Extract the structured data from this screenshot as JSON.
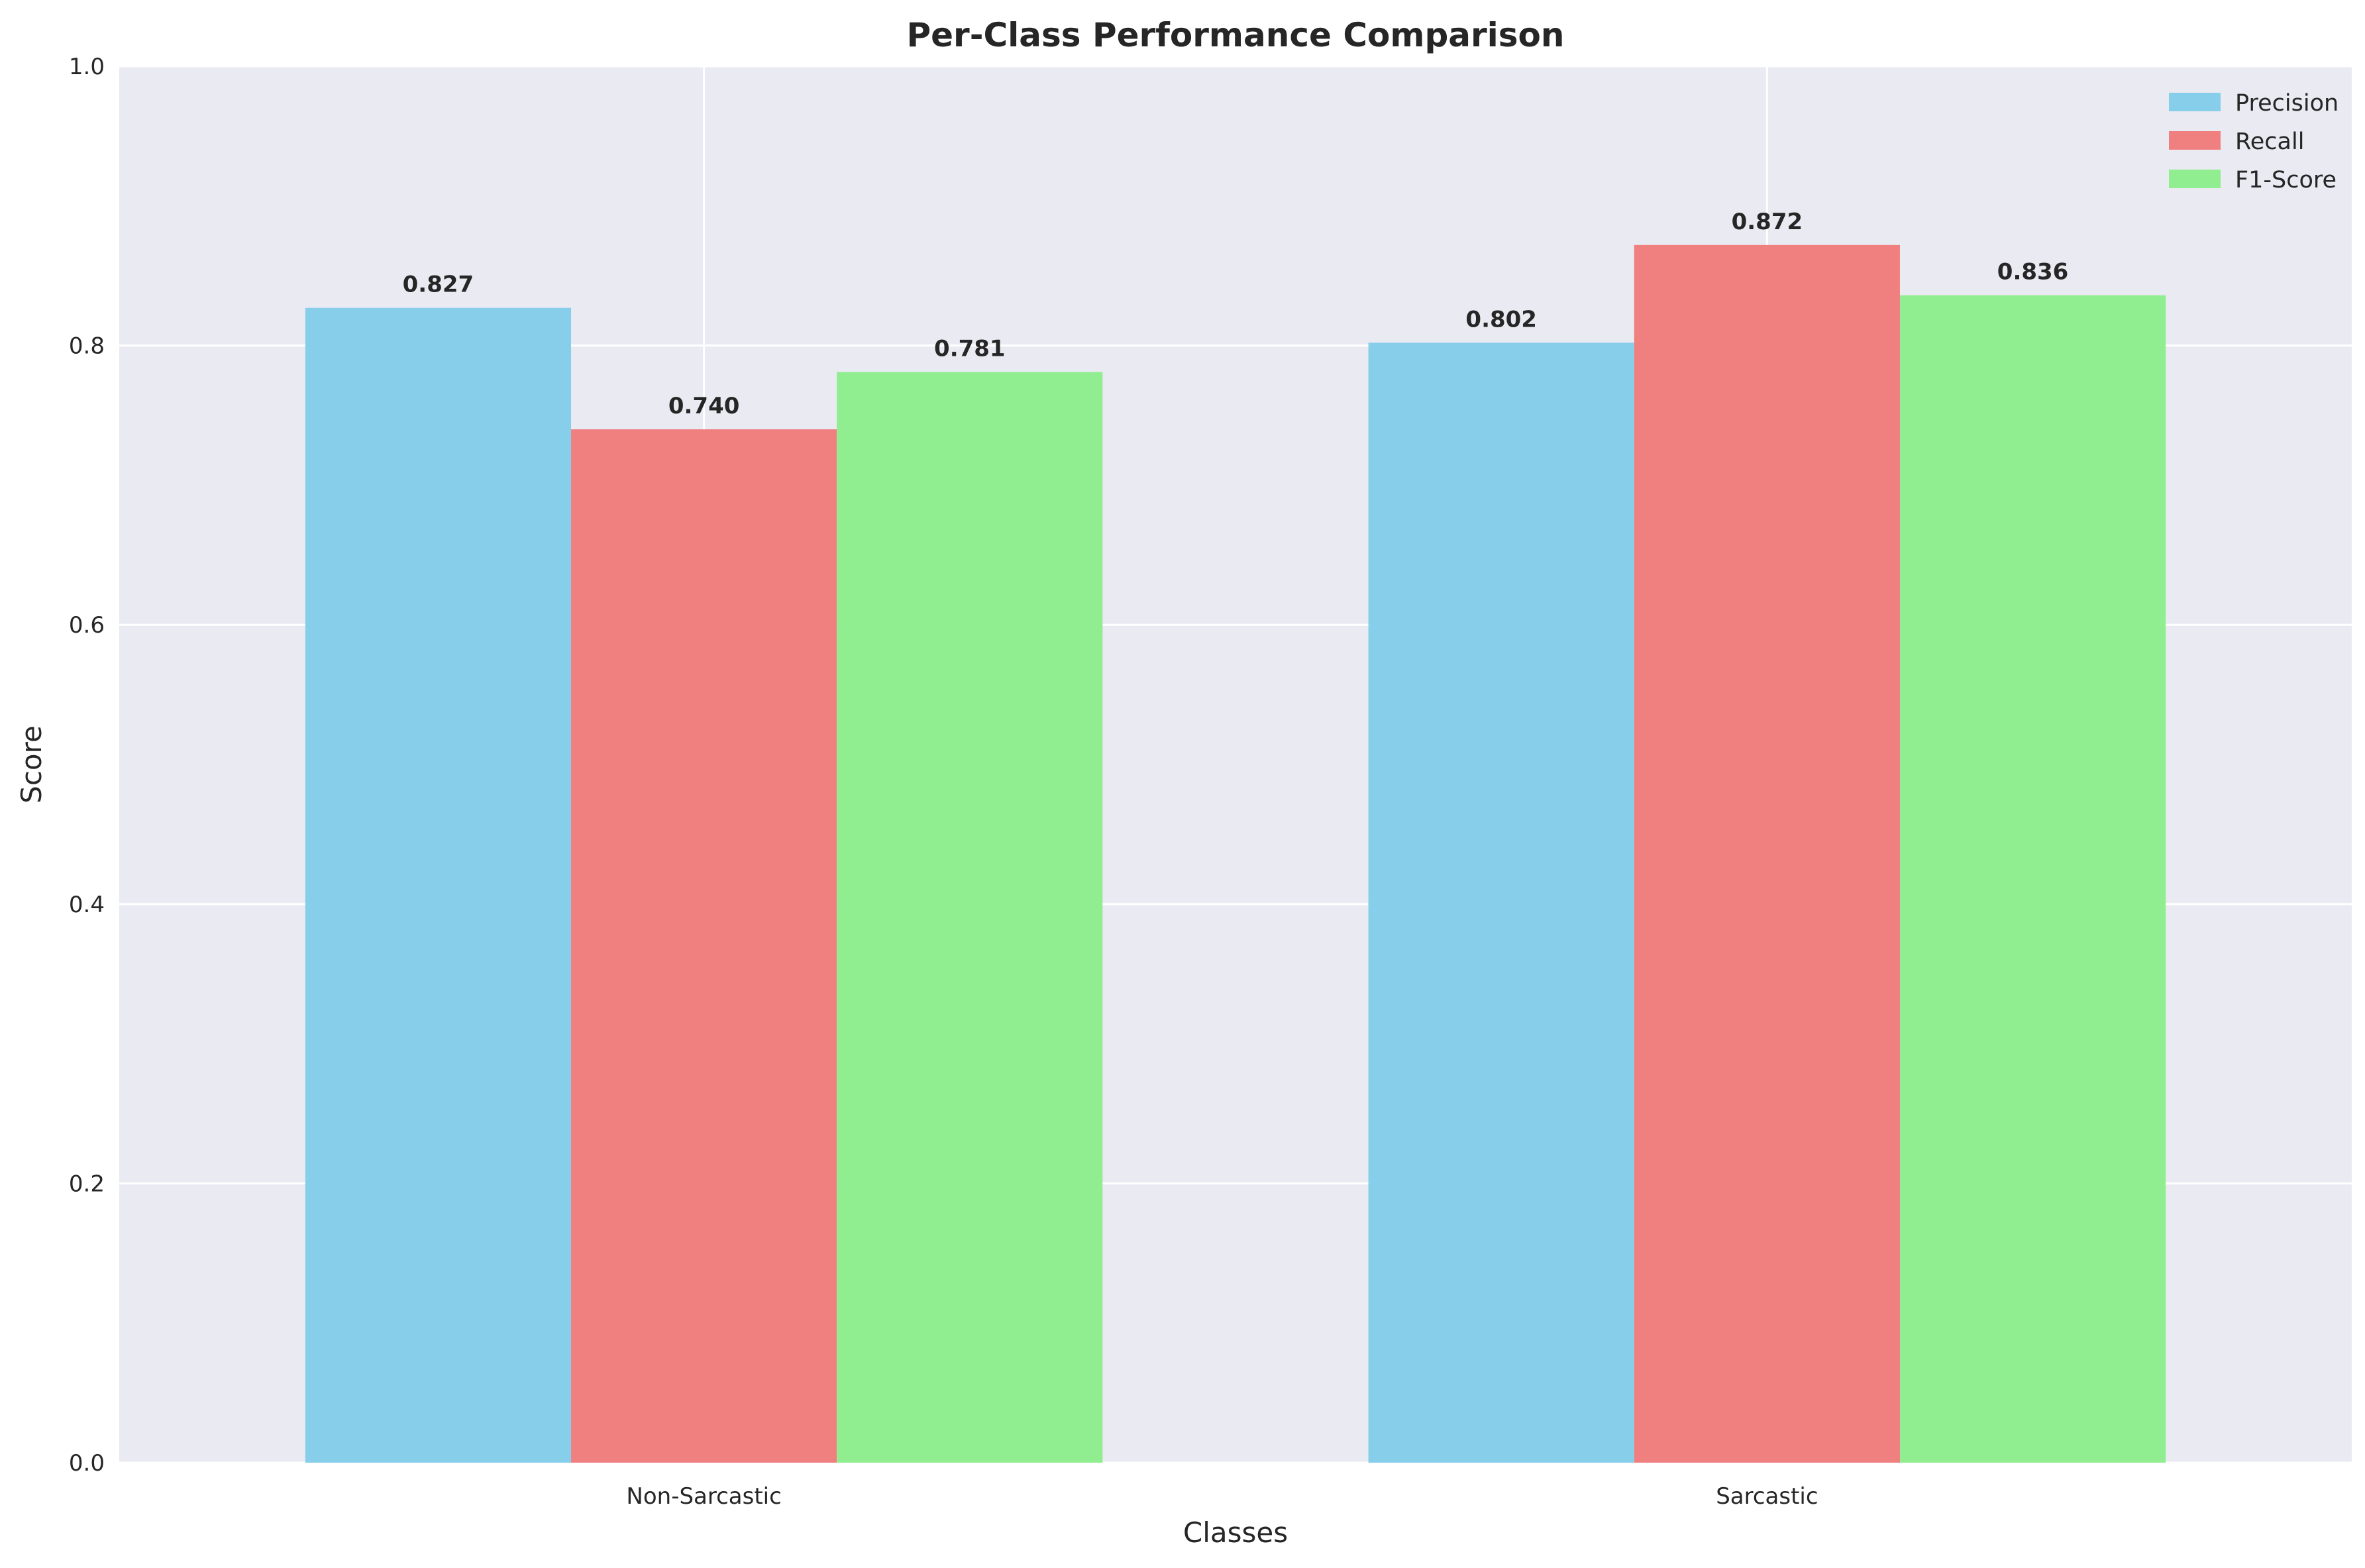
{
  "chart_data": {
    "type": "bar",
    "title": "Per-Class Performance Comparison",
    "xlabel": "Classes",
    "ylabel": "Score",
    "categories": [
      "Non-Sarcastic",
      "Sarcastic"
    ],
    "series": [
      {
        "name": "Precision",
        "values": [
          0.827,
          0.802
        ],
        "labels": [
          "0.827",
          "0.802"
        ],
        "color": "#87ceeb"
      },
      {
        "name": "Recall",
        "values": [
          0.74,
          0.872
        ],
        "labels": [
          "0.740",
          "0.872"
        ],
        "color": "#f08080"
      },
      {
        "name": "F1-Score",
        "values": [
          0.781,
          0.836
        ],
        "labels": [
          "0.781",
          "0.836"
        ],
        "color": "#90ee90"
      }
    ],
    "ylim": [
      0,
      1.0
    ],
    "yticks": [
      "0.0",
      "0.2",
      "0.4",
      "0.6",
      "0.8",
      "1.0"
    ],
    "grid": true,
    "legend_position": "top-right",
    "background_color": "#eaeaf2",
    "grid_color": "#ffffff"
  }
}
